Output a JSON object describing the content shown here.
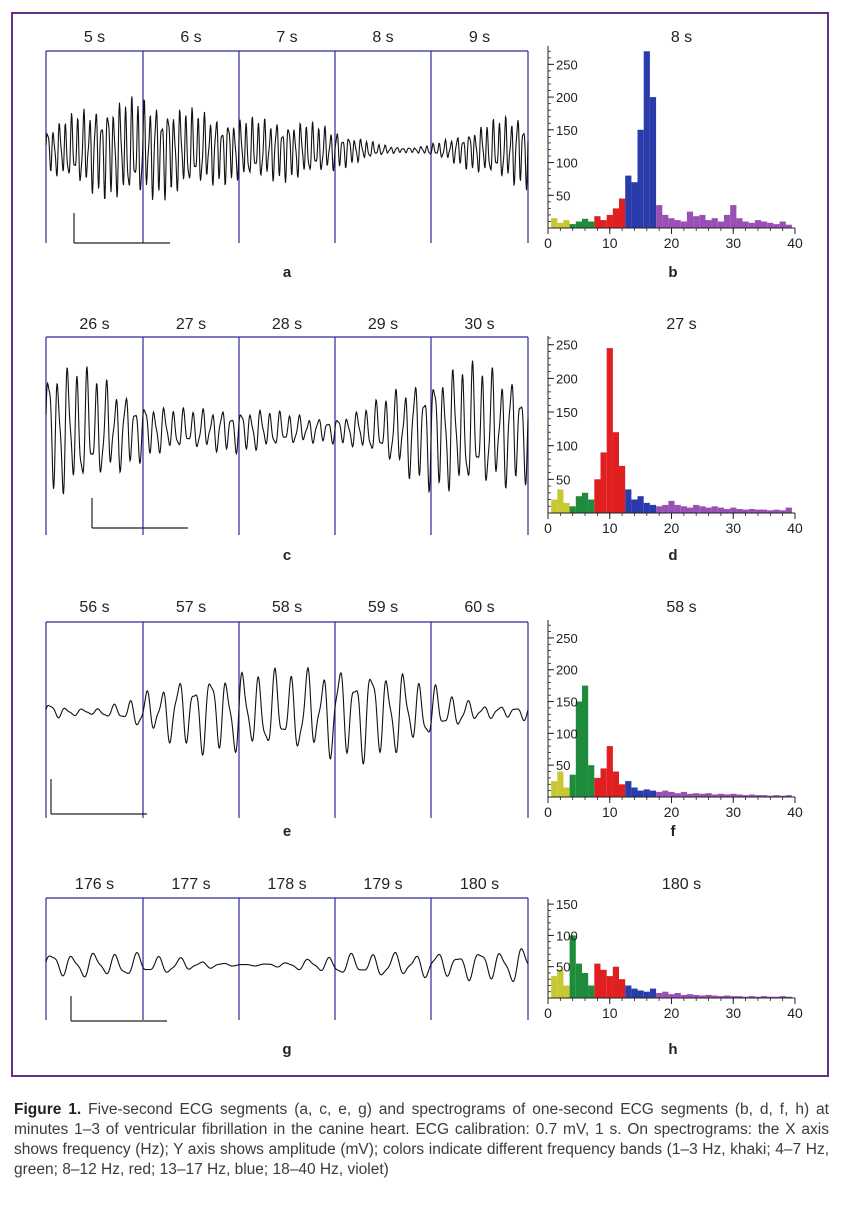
{
  "figure": {
    "caption_label": "Figure 1.",
    "caption_text": "Five-second ECG segments (a, c, e, g) and spectrograms of one-second ECG segments (b, d, f, h) at minutes 1–3 of ventricular fibrillation in the canine heart. ECG calibration: 0.7 mV, 1 s. On spectrograms: the X axis shows frequency (Hz); Y axis shows amplitude (mV); colors indicate different frequency bands (1–3 Hz, khaki; 4–7 Hz, green; 8–12 Hz, red; 13–17 Hz, blue; 18–40 Hz, violet)",
    "colors": {
      "frame": "#6a2f8d",
      "divider": "#2a2a9a",
      "trace": "#111111"
    }
  },
  "bands": [
    {
      "range": [
        1,
        3
      ],
      "color": "#c8c832"
    },
    {
      "range": [
        4,
        7
      ],
      "color": "#1e8c3c"
    },
    {
      "range": [
        8,
        12
      ],
      "color": "#e02020"
    },
    {
      "range": [
        13,
        17
      ],
      "color": "#2a3cac"
    },
    {
      "range": [
        18,
        40
      ],
      "color": "#9a4fb4"
    }
  ],
  "chart_data": [
    {
      "type": "line",
      "panel": "a",
      "time_labels": [
        "5 s",
        "6 s",
        "7 s",
        "8 s",
        "9 s"
      ],
      "description_of_signal": "ventricular fibrillation ECG, ~16 Hz dominant",
      "dominant_hz": 16,
      "amplitude": 1.0
    },
    {
      "type": "bar",
      "panel": "b",
      "title": "8 s",
      "xlim": [
        0,
        40
      ],
      "ylim": [
        0,
        275
      ],
      "x_ticks": [
        0,
        10,
        20,
        30,
        40
      ],
      "y_ticks": [
        50,
        100,
        150,
        200,
        250
      ],
      "x": [
        1,
        2,
        3,
        4,
        5,
        6,
        7,
        8,
        9,
        10,
        11,
        12,
        13,
        14,
        15,
        16,
        17,
        18,
        19,
        20,
        21,
        22,
        23,
        24,
        25,
        26,
        27,
        28,
        29,
        30,
        31,
        32,
        33,
        34,
        35,
        36,
        37,
        38,
        39
      ],
      "values": [
        15,
        8,
        12,
        6,
        10,
        14,
        10,
        18,
        12,
        20,
        30,
        45,
        80,
        70,
        150,
        270,
        200,
        35,
        20,
        15,
        12,
        10,
        25,
        18,
        20,
        12,
        15,
        10,
        20,
        35,
        15,
        10,
        8,
        12,
        10,
        8,
        6,
        10,
        5
      ]
    },
    {
      "type": "line",
      "panel": "c",
      "time_labels": [
        "26 s",
        "27 s",
        "28 s",
        "29 s",
        "30 s"
      ],
      "dominant_hz": 10,
      "amplitude": 1.25
    },
    {
      "type": "bar",
      "panel": "d",
      "title": "27 s",
      "xlim": [
        0,
        40
      ],
      "ylim": [
        0,
        260
      ],
      "x_ticks": [
        0,
        10,
        20,
        30,
        40
      ],
      "y_ticks": [
        50,
        100,
        150,
        200,
        250
      ],
      "x": [
        1,
        2,
        3,
        4,
        5,
        6,
        7,
        8,
        9,
        10,
        11,
        12,
        13,
        14,
        15,
        16,
        17,
        18,
        19,
        20,
        21,
        22,
        23,
        24,
        25,
        26,
        27,
        28,
        29,
        30,
        31,
        32,
        33,
        34,
        35,
        36,
        37,
        38,
        39
      ],
      "values": [
        20,
        35,
        15,
        10,
        25,
        30,
        20,
        50,
        90,
        245,
        120,
        70,
        35,
        20,
        25,
        15,
        12,
        10,
        12,
        18,
        12,
        10,
        8,
        12,
        10,
        8,
        10,
        8,
        6,
        8,
        6,
        5,
        6,
        5,
        5,
        4,
        5,
        4,
        8
      ]
    },
    {
      "type": "line",
      "panel": "e",
      "time_labels": [
        "56 s",
        "57 s",
        "58 s",
        "59 s",
        "60 s"
      ],
      "dominant_hz": 6,
      "amplitude": 1.1
    },
    {
      "type": "bar",
      "panel": "f",
      "title": "58 s",
      "xlim": [
        0,
        40
      ],
      "ylim": [
        0,
        275
      ],
      "x_ticks": [
        0,
        10,
        20,
        30,
        40
      ],
      "y_ticks": [
        50,
        100,
        150,
        200,
        250
      ],
      "x": [
        1,
        2,
        3,
        4,
        5,
        6,
        7,
        8,
        9,
        10,
        11,
        12,
        13,
        14,
        15,
        16,
        17,
        18,
        19,
        20,
        21,
        22,
        23,
        24,
        25,
        26,
        27,
        28,
        29,
        30,
        31,
        32,
        33,
        34,
        35,
        36,
        37,
        38,
        39
      ],
      "values": [
        25,
        40,
        15,
        35,
        150,
        175,
        50,
        30,
        45,
        80,
        40,
        20,
        25,
        15,
        10,
        12,
        10,
        8,
        10,
        8,
        6,
        8,
        5,
        6,
        5,
        6,
        4,
        5,
        4,
        5,
        4,
        3,
        4,
        3,
        3,
        2,
        3,
        2,
        3
      ]
    },
    {
      "type": "line",
      "panel": "g",
      "time_labels": [
        "176 s",
        "177 s",
        "178 s",
        "179 s",
        "180 s"
      ],
      "dominant_hz": 4.5,
      "amplitude": 0.6
    },
    {
      "type": "bar",
      "panel": "h",
      "title": "180 s",
      "xlim": [
        0,
        40
      ],
      "ylim": [
        0,
        155
      ],
      "x_ticks": [
        0,
        10,
        20,
        30,
        40
      ],
      "y_ticks": [
        50,
        100,
        150
      ],
      "x": [
        1,
        2,
        3,
        4,
        5,
        6,
        7,
        8,
        9,
        10,
        11,
        12,
        13,
        14,
        15,
        16,
        17,
        18,
        19,
        20,
        21,
        22,
        23,
        24,
        25,
        26,
        27,
        28,
        29,
        30,
        31,
        32,
        33,
        34,
        35,
        36,
        37,
        38,
        39
      ],
      "values": [
        35,
        45,
        20,
        100,
        55,
        40,
        20,
        55,
        45,
        35,
        50,
        30,
        20,
        15,
        12,
        10,
        15,
        8,
        10,
        6,
        8,
        5,
        6,
        5,
        4,
        5,
        4,
        3,
        4,
        3,
        3,
        2,
        3,
        2,
        3,
        2,
        2,
        3,
        2
      ]
    }
  ],
  "panel_letters": [
    "a",
    "b",
    "c",
    "d",
    "e",
    "f",
    "g",
    "h"
  ]
}
